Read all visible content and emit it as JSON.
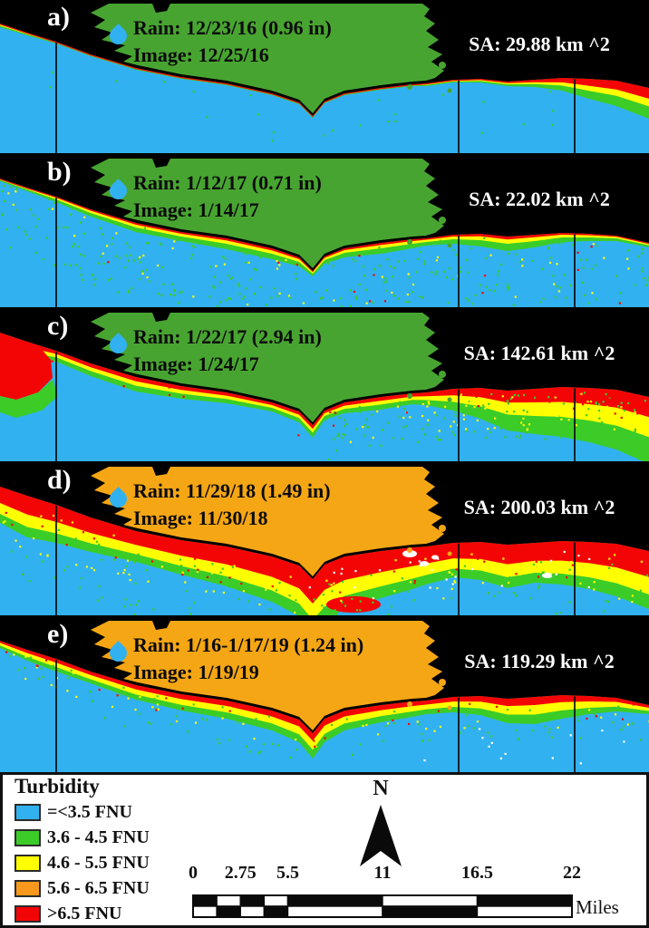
{
  "figure": {
    "panels": [
      {
        "label": "a)",
        "rain": "Rain: 12/23/16 (0.96 in)",
        "image": "Image: 12/25/16",
        "sa": "SA: 29.88 km ^2",
        "land_color": "#48A431"
      },
      {
        "label": "b)",
        "rain": "Rain: 1/12/17 (0.71 in)",
        "image": "Image: 1/14/17",
        "sa": "SA: 22.02 km ^2",
        "land_color": "#48A431"
      },
      {
        "label": "c)",
        "rain": "Rain: 1/22/17 (2.94 in)",
        "image": "Image: 1/24/17",
        "sa": "SA: 142.61 km ^2",
        "land_color": "#48A431"
      },
      {
        "label": "d)",
        "rain": "Rain: 11/29/18 (1.49 in)",
        "image": "Image: 11/30/18",
        "sa": "SA: 200.03 km ^2",
        "land_color": "#F5A614"
      },
      {
        "label": "e)",
        "rain": "Rain: 1/16-1/17/19 (1.24 in)",
        "image": "Image: 1/19/19",
        "sa": "SA: 119.29 km ^2",
        "land_color": "#F5A614"
      }
    ],
    "legend": {
      "title": "Turbidity",
      "items": [
        {
          "label": "=<3.5 FNU",
          "color": "#32B1F0"
        },
        {
          "label": "3.6 - 4.5 FNU",
          "color": "#3BCC28"
        },
        {
          "label": "4.6 - 5.5 FNU",
          "color": "#FFFF00"
        },
        {
          "label": "5.6 - 6.5 FNU",
          "color": "#F8991D"
        },
        {
          "label": ">6.5 FNU",
          "color": "#F40505"
        }
      ]
    },
    "north_label": "N",
    "scalebar": {
      "tick_labels": [
        "0",
        "2.75",
        "5.5",
        "11",
        "16.5",
        "22"
      ],
      "ticks_miles": [
        0,
        2.75,
        5.5,
        11,
        16.5,
        22
      ],
      "segment_bounds_miles": [
        0,
        1.375,
        2.75,
        4.125,
        5.5,
        11,
        16.5,
        22
      ],
      "unit": "Miles",
      "total_miles": 22
    },
    "colors": {
      "ocean": "#32B1F0",
      "turbidity_green": "#3BCC28",
      "turbidity_yellow": "#FFFF00",
      "turbidity_orange": "#F8991D",
      "turbidity_red": "#F40505",
      "land_green": "#48A431",
      "land_orange": "#F5A614",
      "background": "#000000",
      "cloud_white": "#FFFFFF"
    }
  }
}
